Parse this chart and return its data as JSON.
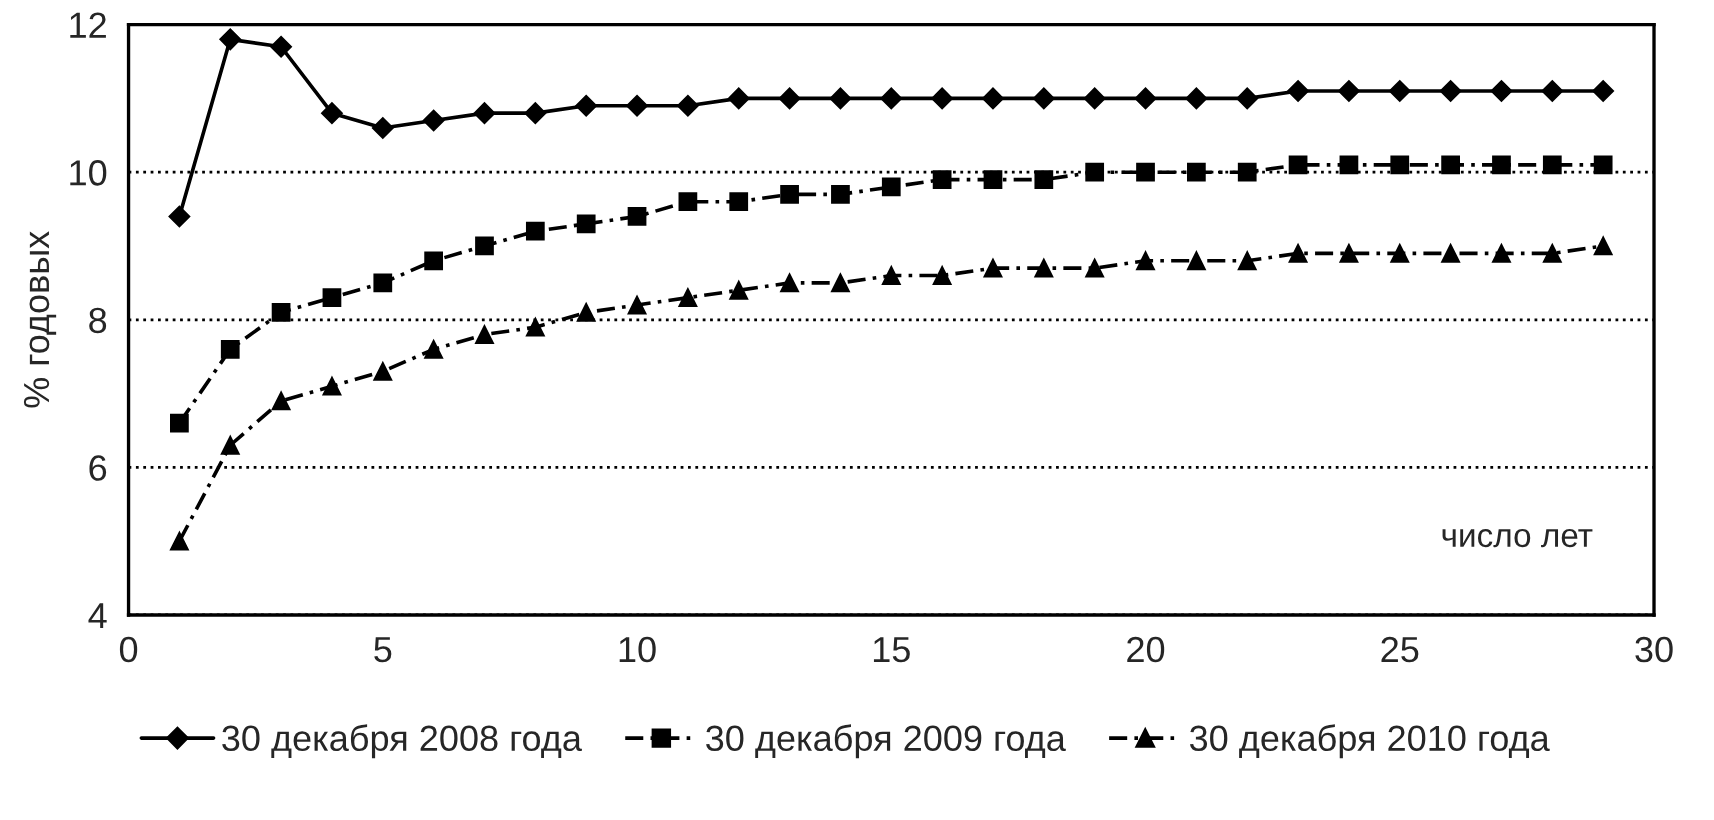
{
  "chart_data": {
    "type": "line",
    "ylabel": "% годовых",
    "annotations": [
      "число лет"
    ],
    "x": [
      1,
      2,
      3,
      4,
      5,
      6,
      7,
      8,
      9,
      10,
      11,
      12,
      13,
      14,
      15,
      16,
      17,
      18,
      19,
      20,
      21,
      22,
      23,
      24,
      25,
      26,
      27,
      28,
      29
    ],
    "xlim": [
      0,
      30
    ],
    "xticks": [
      0,
      5,
      10,
      15,
      20,
      25,
      30
    ],
    "ylim": [
      4,
      12
    ],
    "yticks": [
      4,
      6,
      8,
      10,
      12
    ],
    "grid": "y",
    "legend": "bottom",
    "series": [
      {
        "name": "30 декабря 2008 года",
        "color": "#000000",
        "marker": "diamond",
        "line_style": "solid",
        "values": [
          9.4,
          11.8,
          11.7,
          10.8,
          10.6,
          10.7,
          10.8,
          10.8,
          10.9,
          10.9,
          10.9,
          11.0,
          11.0,
          11.0,
          11.0,
          11.0,
          11.0,
          11.0,
          11.0,
          11.0,
          11.0,
          11.0,
          11.1,
          11.1,
          11.1,
          11.1,
          11.1,
          11.1,
          11.1
        ]
      },
      {
        "name": "30 декабря 2009 года",
        "color": "#000000",
        "marker": "square",
        "line_style": "dashed",
        "values": [
          6.6,
          7.6,
          8.1,
          8.3,
          8.5,
          8.8,
          9.0,
          9.2,
          9.3,
          9.4,
          9.6,
          9.6,
          9.7,
          9.7,
          9.8,
          9.9,
          9.9,
          9.9,
          10.0,
          10.0,
          10.0,
          10.0,
          10.1,
          10.1,
          10.1,
          10.1,
          10.1,
          10.1,
          10.1
        ]
      },
      {
        "name": "30 декабря 2010 года",
        "color": "#000000",
        "marker": "triangle",
        "line_style": "dashed",
        "values": [
          5.0,
          6.3,
          6.9,
          7.1,
          7.3,
          7.6,
          7.8,
          7.9,
          8.1,
          8.2,
          8.3,
          8.4,
          8.5,
          8.5,
          8.6,
          8.6,
          8.7,
          8.7,
          8.7,
          8.8,
          8.8,
          8.8,
          8.9,
          8.9,
          8.9,
          8.9,
          8.9,
          8.9,
          9.0
        ]
      }
    ]
  }
}
